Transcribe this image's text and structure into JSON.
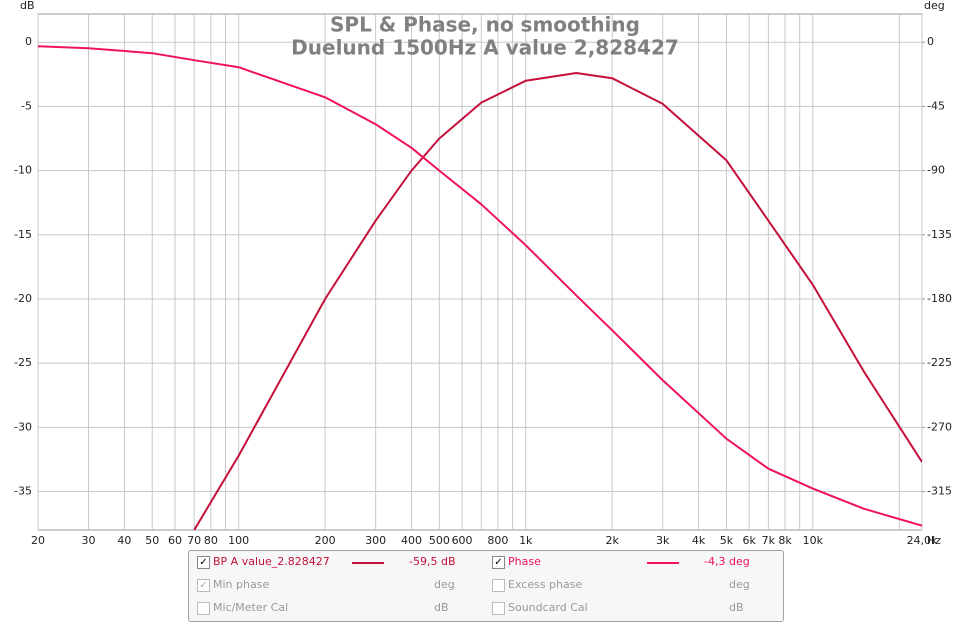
{
  "chart_data": {
    "type": "line",
    "title": "SPL & Phase, no smoothing",
    "subtitle": "Duelund 1500Hz A value 2,828427",
    "ylabel": "dB",
    "y2label": "deg",
    "xlabel": "Hz",
    "log_x": true,
    "grid": true,
    "x": [
      20,
      30,
      50,
      70,
      100,
      200,
      300,
      400,
      500,
      700,
      1000,
      1500,
      2000,
      3000,
      5000,
      7000,
      10000,
      15000,
      24000
    ],
    "xlim": [
      20,
      24000
    ],
    "xticks": [
      20,
      30,
      40,
      50,
      60,
      70,
      80,
      100,
      200,
      300,
      400,
      500,
      600,
      800,
      {
        "value": 1000,
        "label": "1k"
      },
      {
        "value": 2000,
        "label": "2k"
      },
      {
        "value": 3000,
        "label": "3k"
      },
      {
        "value": 4000,
        "label": "4k"
      },
      {
        "value": 5000,
        "label": "5k"
      },
      {
        "value": 6000,
        "label": "6k"
      },
      {
        "value": 7000,
        "label": "7k"
      },
      {
        "value": 8000,
        "label": "8k"
      },
      {
        "value": 10000,
        "label": "10k"
      },
      {
        "value": 24000,
        "label": "24,0k"
      }
    ],
    "xgrid_minor": [
      90,
      700,
      900,
      9000,
      20000
    ],
    "ylim": [
      -38,
      2.2
    ],
    "yticks": [
      0,
      -5,
      -10,
      -15,
      -20,
      -25,
      -30,
      -35
    ],
    "y2lim": [
      -342,
      19.8
    ],
    "y2ticks": [
      0,
      -45,
      -90,
      -135,
      -180,
      -225,
      -270,
      -315
    ],
    "series": [
      {
        "name": "BP A value_2.828427",
        "color": "#c4103a",
        "reading": "-59,5 dB",
        "values": [
          null,
          null,
          null,
          -38,
          -32.2,
          -20.0,
          -13.9,
          -10.0,
          -7.5,
          -4.7,
          -3.0,
          -2.4,
          -2.8,
          -4.8,
          -9.2,
          -13.9,
          -18.9,
          -25.6,
          -32.7
        ]
      },
      {
        "name": "Phase",
        "color": "#f0125a",
        "axis": "y2",
        "reading": "-4,3 deg",
        "values": [
          -2.8,
          -4.2,
          -7.7,
          -12.6,
          -17.5,
          -38.6,
          -57.5,
          -74,
          -90,
          -113.6,
          -142.4,
          -177.5,
          -202,
          -237,
          -278,
          -299,
          -313,
          -327,
          -339
        ]
      }
    ],
    "legend_extra": [
      {
        "name": "Min phase",
        "unit": "deg"
      },
      {
        "name": "Excess phase",
        "unit": "deg"
      },
      {
        "name": "Mic/Meter Cal",
        "unit": "dB"
      },
      {
        "name": "Soundcard Cal",
        "unit": "dB"
      }
    ]
  }
}
